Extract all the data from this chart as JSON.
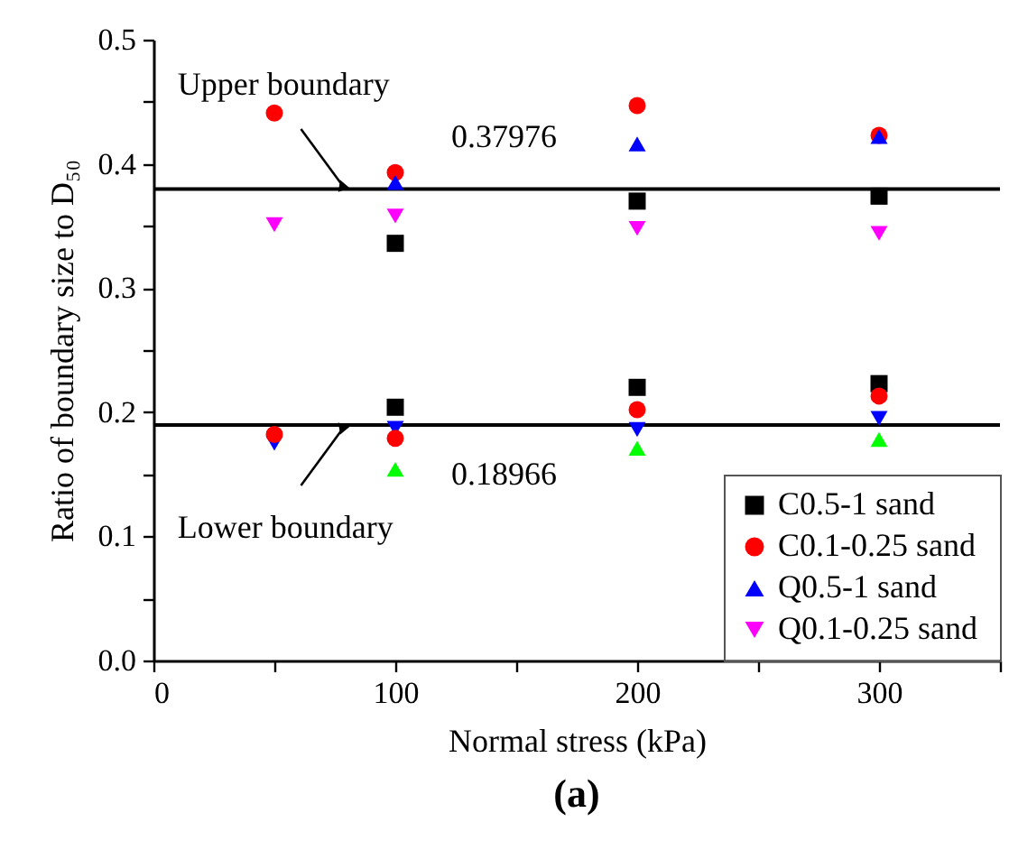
{
  "chart_data": {
    "type": "scatter",
    "xlabel": "Normal stress (kPa)",
    "ylabel": "Ratio of boundary size to D₅₀",
    "xlim": [
      0,
      350
    ],
    "xticks": [
      0,
      {
        "value": 50,
        "label": null
      },
      100,
      {
        "value": 150,
        "label": null
      },
      200,
      {
        "value": 250,
        "label": null
      },
      300,
      {
        "value": 350,
        "label": null
      }
    ],
    "ylim": [
      0,
      0.5
    ],
    "yticks": [
      {
        "value": 0,
        "label": "0.0"
      },
      {
        "value": 0.05,
        "label": null
      },
      0.1,
      {
        "value": 0.15,
        "label": null
      },
      0.2,
      {
        "value": 0.25,
        "label": null
      },
      0.3,
      {
        "value": 0.35,
        "label": null
      },
      0.4,
      {
        "value": 0.45,
        "label": null
      },
      0.5
    ],
    "grid": false,
    "legend": "bottom right",
    "series": [
      {
        "name": "C0.5-1 sand",
        "color": "#000000",
        "marker": "square",
        "x": [
          100,
          200,
          300,
          100,
          200,
          300
        ],
        "values": [
          0.336,
          0.37,
          0.374,
          0.204,
          0.22,
          0.223
        ]
      },
      {
        "name": "C0.1-0.25  sand",
        "color": "#ff0000",
        "marker": "circle",
        "x": [
          50,
          100,
          200,
          300,
          50,
          100,
          200,
          300
        ],
        "values": [
          0.441,
          0.393,
          0.447,
          0.423,
          0.182,
          0.179,
          0.202,
          0.213
        ]
      },
      {
        "name": "Q0.5-1  sand",
        "color": "#0000ff",
        "marker": "triangle",
        "x": [
          100,
          200,
          300
        ],
        "values": [
          0.385,
          0.416,
          0.422
        ]
      },
      {
        "name": "Q0.1-0.25  sand",
        "color": "#ff00ff",
        "marker": "triangle-down",
        "x": [
          50,
          100,
          200,
          300
        ],
        "values": [
          0.351,
          0.358,
          0.348,
          0.344
        ]
      },
      {
        "color": "#0000ff",
        "marker": "triangle-down",
        "x": [
          50,
          100,
          200,
          300
        ],
        "values": [
          0.175,
          0.187,
          0.186,
          0.195
        ]
      },
      {
        "color": "#00ff00",
        "marker": "triangle",
        "x": [
          100,
          200,
          300
        ],
        "values": [
          0.154,
          0.171,
          0.178
        ]
      }
    ],
    "ref_lines": [
      {
        "axis": "y",
        "value": 0.37976,
        "label": "0.37976",
        "color": "#000000"
      },
      {
        "axis": "y",
        "value": 0.18966,
        "label": "0.18966",
        "color": "#000000"
      }
    ],
    "annotations": [
      {
        "text": "Upper boundary",
        "x": 78,
        "y": 0.383
      },
      {
        "text": "Lower boundary",
        "x": 78,
        "y": 0.186
      },
      "(a)"
    ]
  }
}
